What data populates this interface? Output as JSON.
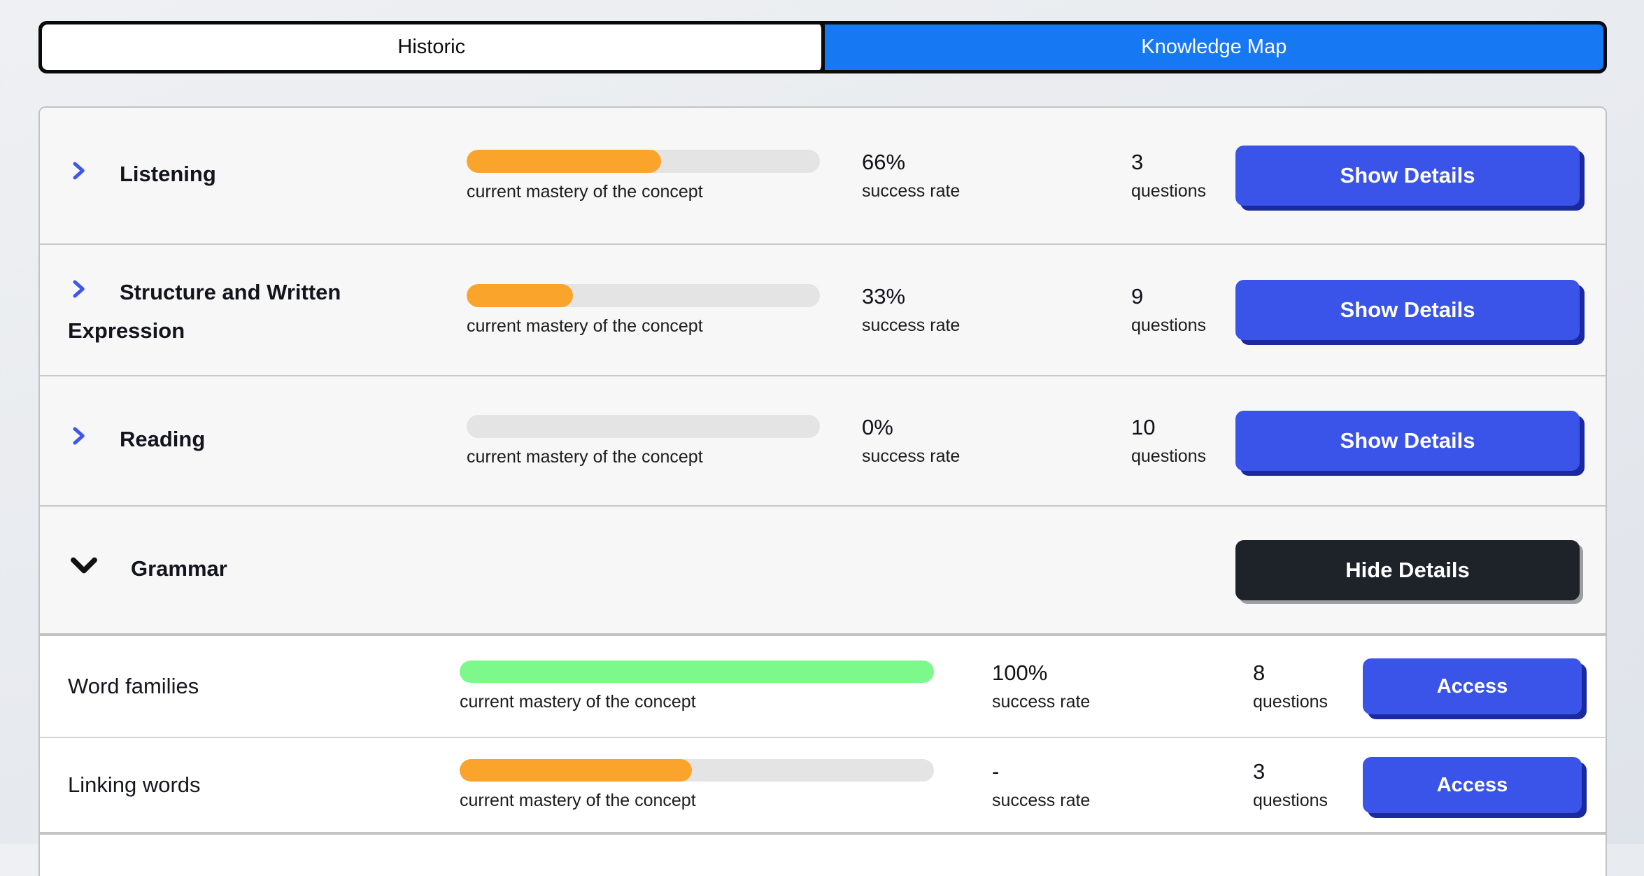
{
  "tabs": {
    "historic": "Historic",
    "knowledge_map": "Knowledge Map",
    "active_tab": "Knowledge Map",
    "active_color": "#1778f3"
  },
  "labels": {
    "mastery_caption": "current mastery of the concept",
    "success_rate": "success rate",
    "questions": "questions"
  },
  "colors": {
    "orange_bar": "#fba42c",
    "green_bar": "#7df88b",
    "empty_track": "#e4e4e4",
    "primary_button": "#3a53e8",
    "dark_button": "#1e2329",
    "chevron_blue": "#3c56ee"
  },
  "rows": [
    {
      "title": "Listening",
      "level": "section",
      "expanded": false,
      "mastery_pct": 55,
      "bar_color": "#fba42c",
      "success_rate": "66%",
      "questions": "3",
      "action": "Show Details"
    },
    {
      "title": "Structure and Written Expression",
      "level": "section",
      "expanded": false,
      "mastery_pct": 30,
      "bar_color": "#fba42c",
      "success_rate": "33%",
      "questions": "9",
      "action": "Show Details"
    },
    {
      "title": "Reading",
      "level": "section",
      "expanded": false,
      "mastery_pct": 0,
      "bar_color": "#fba42c",
      "success_rate": "0%",
      "questions": "10",
      "action": "Show Details"
    },
    {
      "title": "Grammar",
      "level": "section",
      "expanded": true,
      "action": "Hide Details"
    },
    {
      "title": "Word families",
      "level": "sub",
      "mastery_pct": 100,
      "bar_color": "#7df88b",
      "success_rate": "100%",
      "questions": "8",
      "action": "Access"
    },
    {
      "title": "Linking words",
      "level": "sub",
      "mastery_pct": 49,
      "bar_color": "#fba42c",
      "success_rate": "-",
      "questions": "3",
      "action": "Access"
    }
  ]
}
